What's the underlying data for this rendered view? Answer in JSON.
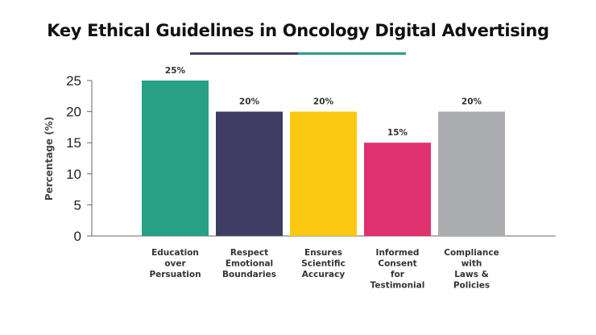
{
  "chart_data": {
    "type": "bar",
    "title": "Key Ethical Guidelines in Oncology Digital Advertising",
    "ylabel": "Percentage (%)",
    "xlabel": "",
    "ylim": [
      0,
      25
    ],
    "yticks": [
      "0",
      "5",
      "10",
      "15",
      "20",
      "25"
    ],
    "categories": [
      [
        "Education",
        "over",
        "Persuation"
      ],
      [
        "Respect",
        "Emotional",
        "Boundaries"
      ],
      [
        "Ensures",
        "Scientific",
        "Accuracy"
      ],
      [
        "Informed",
        "Consent",
        "for",
        "Testimonial"
      ],
      [
        "Compliance",
        "with",
        "Laws &",
        "Policies"
      ]
    ],
    "values": [
      25,
      20,
      20,
      15,
      20
    ],
    "value_labels": [
      "25%",
      "20%",
      "20%",
      "15%",
      "20%"
    ],
    "colors": [
      "#27a085",
      "#3f3d63",
      "#fcc812",
      "#e0306e",
      "#abacaf"
    ],
    "grid": false,
    "legend": "none"
  },
  "decor": {
    "title_rule_colors": [
      "#3f3d63",
      "#27a085"
    ]
  }
}
